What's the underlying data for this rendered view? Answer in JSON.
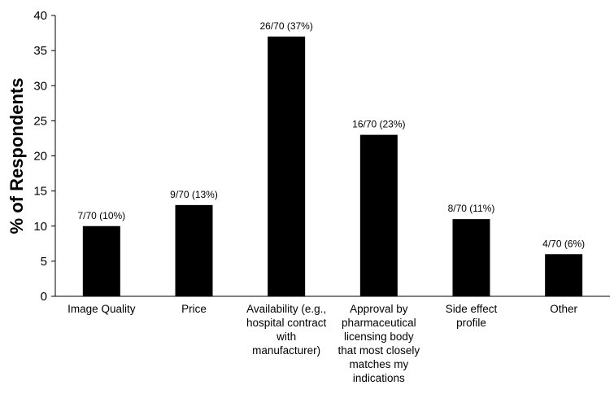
{
  "chart_data": {
    "type": "bar",
    "title": "",
    "xlabel": "",
    "ylabel": "% of Respondents",
    "ylim": [
      0,
      40
    ],
    "yticks": [
      0,
      5,
      10,
      15,
      20,
      25,
      30,
      35,
      40
    ],
    "grid": false,
    "legend": "none",
    "bar_color": "#000000",
    "categories": [
      [
        "Image Quality"
      ],
      [
        "Price"
      ],
      [
        "Availability (e.g.,",
        "hospital contract",
        "with",
        "manufacturer)"
      ],
      [
        "Approval by",
        "pharmaceutical",
        "licensing body",
        "that most closely",
        "matches my",
        "indications"
      ],
      [
        "Side effect",
        "profile"
      ],
      [
        "Other"
      ]
    ],
    "values": [
      10,
      13,
      37,
      23,
      11,
      6
    ],
    "data_labels": [
      "7/70 (10%)",
      "9/70 (13%)",
      "26/70 (37%)",
      "16/70 (23%)",
      "8/70 (11%)",
      "4/70 (6%)"
    ]
  }
}
